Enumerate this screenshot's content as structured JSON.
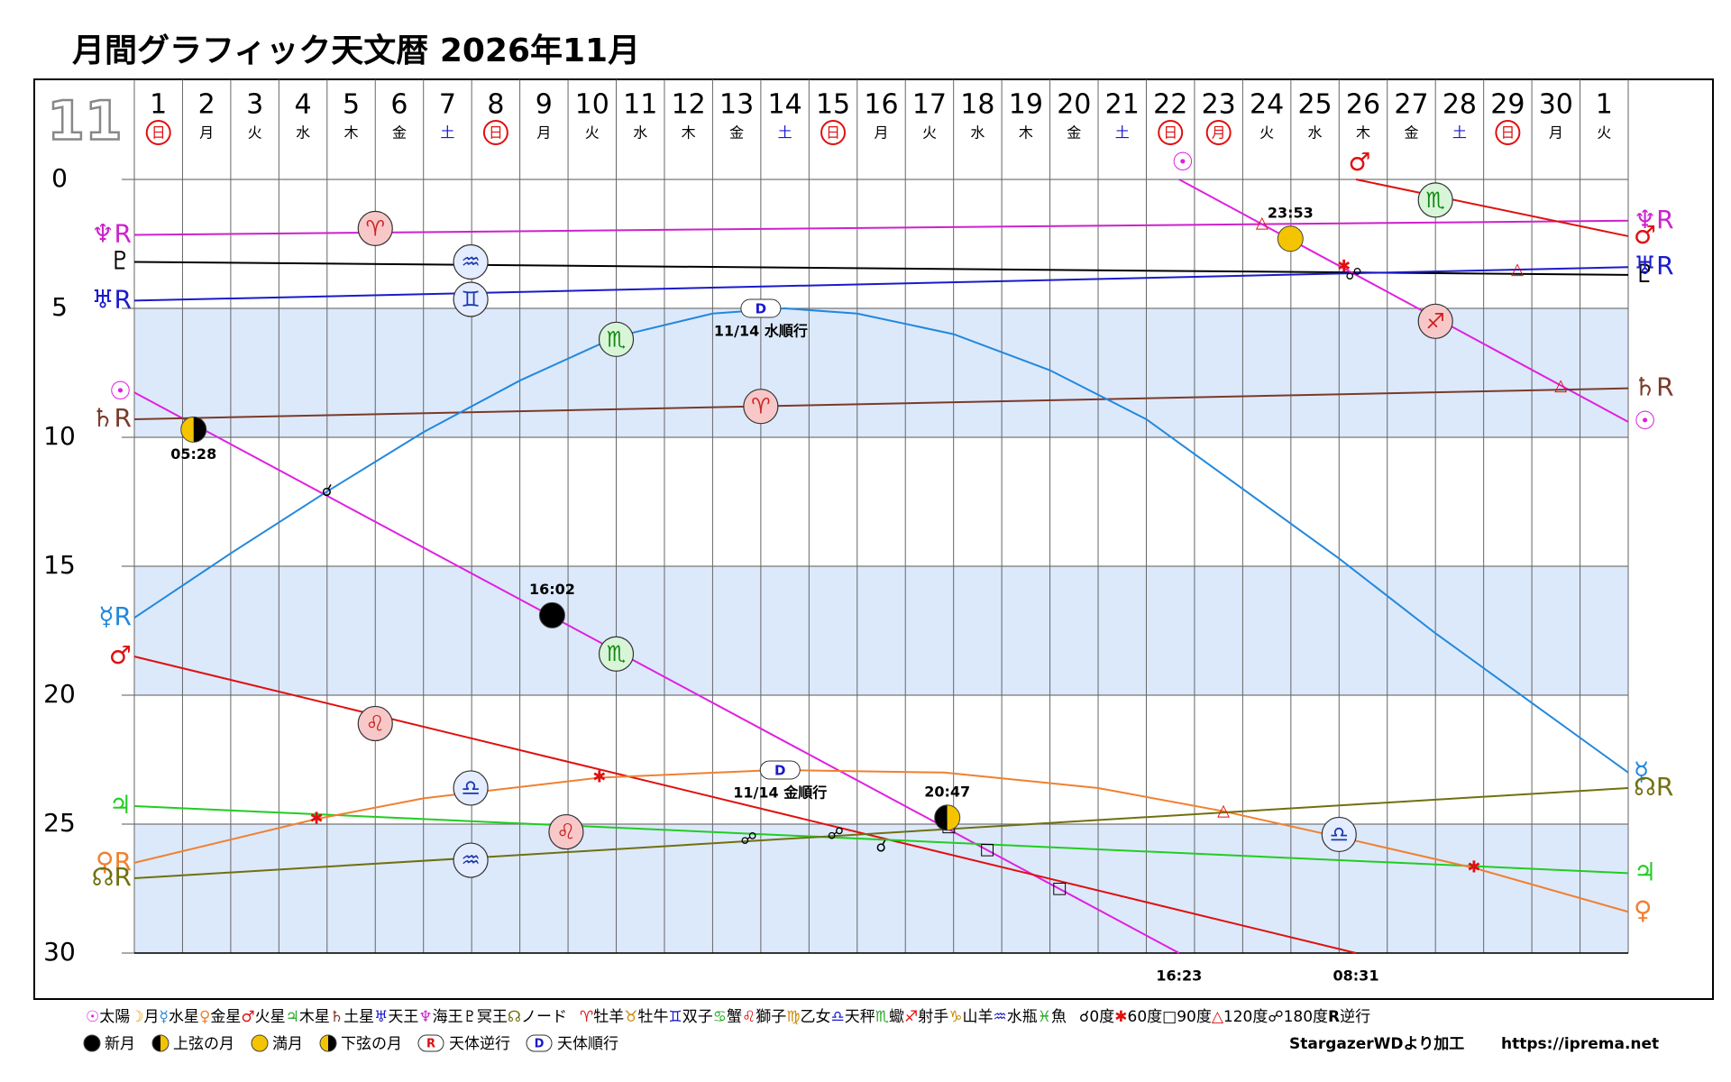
{
  "chart_data": {
    "type": "line",
    "title": "月間グラフィック天文暦 2026年11月",
    "month_label": "11",
    "categories": [
      "1",
      "2",
      "3",
      "4",
      "5",
      "6",
      "7",
      "8",
      "9",
      "10",
      "11",
      "12",
      "13",
      "14",
      "15",
      "16",
      "17",
      "18",
      "19",
      "20",
      "21",
      "22",
      "23",
      "24",
      "25",
      "26",
      "27",
      "28",
      "29",
      "30",
      "1"
    ],
    "weekdays": [
      "日",
      "月",
      "火",
      "水",
      "木",
      "金",
      "土",
      "日",
      "月",
      "火",
      "水",
      "木",
      "金",
      "土",
      "日",
      "月",
      "火",
      "水",
      "木",
      "金",
      "土",
      "日",
      "月",
      "火",
      "水",
      "木",
      "金",
      "土",
      "日",
      "月",
      "火"
    ],
    "circled": [
      true,
      false,
      false,
      false,
      false,
      false,
      false,
      true,
      false,
      false,
      false,
      false,
      false,
      false,
      true,
      false,
      false,
      false,
      false,
      false,
      false,
      true,
      true,
      false,
      false,
      false,
      false,
      false,
      true,
      false,
      false
    ],
    "xlim": [
      0,
      31
    ],
    "ylim": [
      0,
      30
    ],
    "yticks": [
      0,
      5,
      10,
      15,
      20,
      25,
      30
    ],
    "bands": [
      [
        5,
        10
      ],
      [
        15,
        20
      ],
      [
        25,
        30
      ]
    ],
    "grid": true,
    "series": [
      {
        "color": "#cc22cc",
        "x": [
          0,
          31
        ],
        "values": [
          2.15,
          1.6
        ],
        "start_labels": [
          "♆R"
        ],
        "end_label": "♆R"
      },
      {
        "color": "#000000",
        "x": [
          0,
          31
        ],
        "values": [
          3.2,
          3.7
        ],
        "start_labels": [
          "♇"
        ],
        "end_label": "♇"
      },
      {
        "color": "#1a1acc",
        "x": [
          0,
          31
        ],
        "values": [
          4.7,
          3.4
        ],
        "start_labels": [
          "♅R"
        ],
        "end_label": "♅R"
      },
      {
        "color": "#e020e0",
        "x": [
          0,
          21.68,
          null,
          21.68,
          31
        ],
        "values": [
          8.26,
          30,
          null,
          0,
          9.4
        ],
        "start_labels": [
          "☉",
          "☉"
        ],
        "end_label": "☉"
      },
      {
        "color": "#7a3a2a",
        "x": [
          0,
          31
        ],
        "values": [
          9.3,
          8.1
        ],
        "start_labels": [
          "♄R"
        ],
        "end_label": "♄R"
      },
      {
        "color": "#2288dd",
        "x": [
          0,
          2,
          4,
          6,
          8,
          10,
          12,
          13.5,
          15,
          17,
          19,
          21,
          23,
          25,
          27,
          29,
          31
        ],
        "values": [
          17.0,
          14.5,
          12.1,
          9.8,
          7.8,
          6.1,
          5.2,
          5.0,
          5.2,
          6.0,
          7.4,
          9.3,
          12.0,
          14.7,
          17.6,
          20.3,
          23.0
        ],
        "start_labels": [
          "☿R"
        ],
        "end_label": "☿"
      },
      {
        "color": "#e01010",
        "x": [
          0,
          25.35,
          null,
          25.35,
          31
        ],
        "values": [
          18.5,
          30,
          null,
          0,
          2.2
        ],
        "start_labels": [
          "♂",
          "♂"
        ],
        "end_label": "♂"
      },
      {
        "color": "#22cc22",
        "x": [
          0,
          31
        ],
        "values": [
          24.3,
          26.9
        ],
        "start_labels": [
          "♃"
        ],
        "end_label": "♃"
      },
      {
        "color": "#f08030",
        "x": [
          0,
          3.78,
          6,
          9.65,
          13.3,
          16.8,
          20,
          22.6,
          25,
          27.8,
          31
        ],
        "values": [
          26.5,
          24.8,
          24.0,
          23.2,
          22.9,
          23.0,
          23.6,
          24.5,
          25.5,
          26.7,
          28.4
        ],
        "start_labels": [
          "♀R"
        ],
        "end_label": "♀"
      },
      {
        "color": "#707010",
        "x": [
          0,
          31
        ],
        "values": [
          27.1,
          23.6
        ],
        "start_labels": [
          "☊R"
        ],
        "end_label": "☊R"
      }
    ],
    "signs": [
      {
        "symbol": "♈",
        "x": 5.0,
        "y": 1.9,
        "color": "#cc2222",
        "fill": "#f8c8c8"
      },
      {
        "symbol": "♒",
        "x": 6.98,
        "y": 3.2,
        "color": "#1a3aaa",
        "fill": "#e4ecff"
      },
      {
        "symbol": "♊",
        "x": 6.98,
        "y": 4.65,
        "color": "#1a3aaa",
        "fill": "#e4ecff"
      },
      {
        "symbol": "♏",
        "x": 10.0,
        "y": 6.2,
        "color": "#118811",
        "fill": "#d8f5d8"
      },
      {
        "symbol": "♈",
        "x": 13.0,
        "y": 8.8,
        "color": "#cc2222",
        "fill": "#f8c8c8"
      },
      {
        "symbol": "♏",
        "x": 10.0,
        "y": 18.4,
        "color": "#118811",
        "fill": "#d8f5d8"
      },
      {
        "symbol": "♌",
        "x": 5.0,
        "y": 21.1,
        "color": "#cc2222",
        "fill": "#f8c8c8"
      },
      {
        "symbol": "♎",
        "x": 6.98,
        "y": 23.6,
        "color": "#1a3aaa",
        "fill": "#e4ecff"
      },
      {
        "symbol": "♌",
        "x": 8.96,
        "y": 25.3,
        "color": "#cc2222",
        "fill": "#f8c8c8"
      },
      {
        "symbol": "♒",
        "x": 6.98,
        "y": 26.4,
        "color": "#1a3aaa",
        "fill": "#e4ecff"
      },
      {
        "symbol": "♎",
        "x": 25.0,
        "y": 25.4,
        "color": "#1a3aaa",
        "fill": "#e4ecff"
      },
      {
        "symbol": "♏",
        "x": 27.0,
        "y": 0.8,
        "color": "#118811",
        "fill": "#d8f5d8"
      },
      {
        "symbol": "♐",
        "x": 27.0,
        "y": 5.5,
        "color": "#cc2222",
        "fill": "#f8c8c8"
      }
    ],
    "aspects": [
      {
        "symbol": "☌",
        "x": 4.0,
        "y": 12.1,
        "color": "#000000"
      },
      {
        "symbol": "✱",
        "x": 3.78,
        "y": 24.8,
        "color": "#e01010"
      },
      {
        "symbol": "✱",
        "x": 9.65,
        "y": 23.2,
        "color": "#e01010"
      },
      {
        "symbol": "☍",
        "x": 12.75,
        "y": 25.6,
        "color": "#000000"
      },
      {
        "symbol": "☍",
        "x": 14.55,
        "y": 25.4,
        "color": "#000000"
      },
      {
        "symbol": "☍",
        "x": 25.3,
        "y": 3.7,
        "color": "#000000"
      },
      {
        "symbol": "☌",
        "x": 15.5,
        "y": 25.9,
        "color": "#000000"
      },
      {
        "symbol": "□",
        "x": 16.9,
        "y": 25.1,
        "color": "#000000"
      },
      {
        "symbol": "□",
        "x": 17.7,
        "y": 26.0,
        "color": "#000000"
      },
      {
        "symbol": "□",
        "x": 19.2,
        "y": 27.5,
        "color": "#000000"
      },
      {
        "symbol": "△",
        "x": 23.4,
        "y": 1.7,
        "color": "#e01010"
      },
      {
        "symbol": "△",
        "x": 28.7,
        "y": 3.5,
        "color": "#e01010"
      },
      {
        "symbol": "△",
        "x": 29.6,
        "y": 8.0,
        "color": "#e01010"
      },
      {
        "symbol": "△",
        "x": 22.6,
        "y": 24.5,
        "color": "#e01010"
      },
      {
        "symbol": "✱",
        "x": 25.1,
        "y": 3.4,
        "color": "#e01010"
      },
      {
        "symbol": "✱",
        "x": 27.8,
        "y": 26.7,
        "color": "#e01010"
      }
    ],
    "stations": [
      {
        "symbol": "D",
        "text": "11/14 水順行",
        "x": 13.0,
        "y": 5.0
      },
      {
        "symbol": "D",
        "text": "11/14 金順行",
        "x": 13.4,
        "y": 22.9
      }
    ],
    "moon_phases": [
      {
        "phase": "last_quarter",
        "time": "05:28",
        "x": 1.23,
        "y": 9.7,
        "label_pos": "below"
      },
      {
        "phase": "new",
        "time": "16:02",
        "x": 8.67,
        "y": 16.9,
        "label_pos": "above"
      },
      {
        "phase": "first_quarter",
        "time": "20:47",
        "x": 16.87,
        "y": 24.75,
        "label_pos": "above"
      },
      {
        "phase": "full",
        "time": "23:53",
        "x": 23.99,
        "y": 2.3,
        "label_pos": "above"
      }
    ],
    "bottom_labels": [
      {
        "text": "16:23",
        "x": 21.68
      },
      {
        "text": "08:31",
        "x": 25.35
      }
    ],
    "legend": {
      "row1": [
        {
          "symbol": "☉",
          "text": "太陽",
          "color": "#e020e0"
        },
        {
          "symbol": "☽",
          "text": "月",
          "color": "#e8a000"
        },
        {
          "symbol": "☿",
          "text": "水星",
          "color": "#2288dd"
        },
        {
          "symbol": "♀",
          "text": "金星",
          "color": "#f08030"
        },
        {
          "symbol": "♂",
          "text": "火星",
          "color": "#e01010"
        },
        {
          "symbol": "♃",
          "text": "木星",
          "color": "#22aa22"
        },
        {
          "symbol": "♄",
          "text": "土星",
          "color": "#7a3a2a"
        },
        {
          "symbol": "♅",
          "text": "天王",
          "color": "#1a1acc"
        },
        {
          "symbol": "♆",
          "text": "海王",
          "color": "#cc22cc"
        },
        {
          "symbol": "♇",
          "text": "冥王",
          "color": "#000000"
        },
        {
          "symbol": "☊",
          "text": "ノード",
          "color": "#707010"
        },
        {
          "symbol": "♈",
          "text": "牡羊",
          "color": "#e01010"
        },
        {
          "symbol": "♉",
          "text": "牡牛",
          "color": "#cc8800"
        },
        {
          "symbol": "♊",
          "text": "双子",
          "color": "#1a1acc"
        },
        {
          "symbol": "♋",
          "text": "蟹",
          "color": "#22aa22"
        },
        {
          "symbol": "♌",
          "text": "獅子",
          "color": "#e01010"
        },
        {
          "symbol": "♍",
          "text": "乙女",
          "color": "#cc8800"
        },
        {
          "symbol": "♎",
          "text": "天秤",
          "color": "#1a1acc"
        },
        {
          "symbol": "♏",
          "text": "蠍",
          "color": "#22aa22"
        },
        {
          "symbol": "♐",
          "text": "射手",
          "color": "#e01010"
        },
        {
          "symbol": "♑",
          "text": "山羊",
          "color": "#cc8800"
        },
        {
          "symbol": "♒",
          "text": "水瓶",
          "color": "#1a1acc"
        },
        {
          "symbol": "♓",
          "text": "魚",
          "color": "#22aa22"
        },
        {
          "symbol": "☌",
          "text": "0度",
          "color": "#000000"
        },
        {
          "symbol": "✱",
          "text": "60度",
          "color": "#e01010"
        },
        {
          "symbol": "□",
          "text": "90度",
          "color": "#000000"
        },
        {
          "symbol": "△",
          "text": "120度",
          "color": "#e01010"
        },
        {
          "symbol": "☍",
          "text": "180度",
          "color": "#000000"
        },
        {
          "symbol": "R",
          "text": "逆行",
          "color": "#000000"
        }
      ],
      "row2": [
        {
          "icon": "new",
          "text": "新月"
        },
        {
          "icon": "first_quarter",
          "text": "上弦の月"
        },
        {
          "icon": "full",
          "text": "満月"
        },
        {
          "icon": "last_quarter",
          "text": "下弦の月"
        },
        {
          "symbol": "R",
          "text": "天体逆行",
          "color": "#e01010"
        },
        {
          "symbol": "D",
          "text": "天体順行",
          "color": "#1a1acc"
        }
      ]
    },
    "credit": "StargazerWDより加工",
    "url": "https://iprema.net"
  }
}
